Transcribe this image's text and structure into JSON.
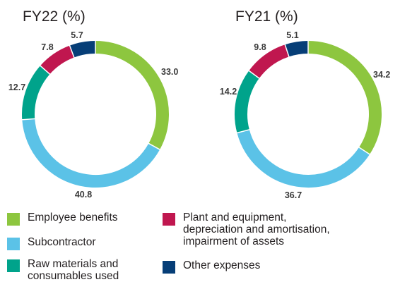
{
  "chart_data": [
    {
      "type": "pie",
      "title": "FY22 (%)",
      "categories": [
        "Employee benefits",
        "Subcontractor",
        "Raw materials and\nconsumables used",
        "Plant and equipment,\ndepreciation and amortisation,\nimpairment of assets",
        "Other expenses"
      ],
      "values": [
        33.0,
        40.8,
        12.7,
        7.8,
        5.7
      ],
      "value_labels": [
        "33.0",
        "40.8",
        "12.7",
        "7.8",
        "5.7"
      ],
      "colors": [
        "#8dc63f",
        "#5bc2e7",
        "#00a38b",
        "#c0174f",
        "#063e77"
      ]
    },
    {
      "type": "pie",
      "title": "FY21 (%)",
      "categories": [
        "Employee benefits",
        "Subcontractor",
        "Raw materials and\nconsumables used",
        "Plant and equipment,\ndepreciation and amortisation,\nimpairment of assets",
        "Other expenses"
      ],
      "values": [
        34.2,
        36.7,
        14.2,
        9.8,
        5.1
      ],
      "value_labels": [
        "34.2",
        "36.7",
        "14.2",
        "9.8",
        "5.1"
      ],
      "colors": [
        "#8dc63f",
        "#5bc2e7",
        "#00a38b",
        "#c0174f",
        "#063e77"
      ]
    }
  ],
  "legend": [
    {
      "label": "Employee benefits",
      "color": "#8dc63f"
    },
    {
      "label": "Subcontractor",
      "color": "#5bc2e7"
    },
    {
      "label": "Raw materials and\nconsumables used",
      "color": "#00a38b"
    },
    {
      "label": "Plant and equipment,\ndepreciation and amortisation,\nimpairment of assets",
      "color": "#c0174f"
    },
    {
      "label": "Other expenses",
      "color": "#063e77"
    }
  ]
}
